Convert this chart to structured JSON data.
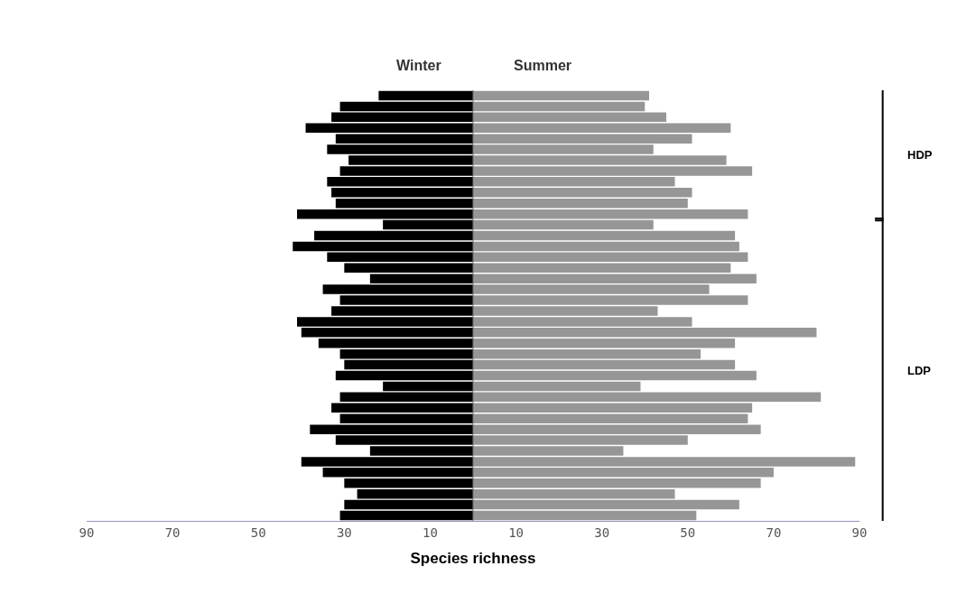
{
  "chart_data": {
    "type": "bar",
    "orientation": "horizontal",
    "stacked": true,
    "xlabel": "Species richness",
    "categories": [
      null,
      null,
      null,
      null,
      null,
      null,
      null,
      null,
      null,
      null,
      null,
      null,
      null,
      null,
      null,
      null,
      null,
      null,
      null,
      null,
      null,
      null,
      null,
      null,
      null,
      null,
      null,
      null,
      null,
      null,
      null,
      null,
      null,
      null,
      null,
      null,
      null,
      null,
      null,
      null
    ],
    "series": [
      {
        "name": "Winter",
        "color": "#000000",
        "values": [
          -22,
          -31,
          -33,
          -39,
          -32,
          -34,
          -29,
          -31,
          -34,
          -33,
          -32,
          -41,
          -21,
          -37,
          -42,
          -34,
          -30,
          -24,
          -35,
          -31,
          -33,
          -41,
          -40,
          -36,
          -31,
          -30,
          -32,
          -21,
          -31,
          -33,
          -31,
          -38,
          -32,
          -24,
          -40,
          -35,
          -30,
          -27,
          -30,
          -31
        ]
      },
      {
        "name": "Summer",
        "color": "#969696",
        "values": [
          41,
          40,
          45,
          60,
          51,
          42,
          59,
          65,
          47,
          51,
          50,
          64,
          42,
          61,
          62,
          64,
          60,
          66,
          55,
          64,
          43,
          51,
          80,
          61,
          53,
          61,
          66,
          39,
          81,
          65,
          64,
          67,
          50,
          35,
          89,
          70,
          67,
          47,
          62,
          52
        ]
      }
    ],
    "xlim": [
      -90,
      90
    ],
    "xticks": [
      {
        "value": -90,
        "label": "90"
      },
      {
        "value": -70,
        "label": "70"
      },
      {
        "value": -50,
        "label": "50"
      },
      {
        "value": -30,
        "label": "30"
      },
      {
        "value": -10,
        "label": "10"
      },
      10,
      30,
      50,
      70,
      90
    ],
    "tick_labels": "x",
    "legend": false,
    "annotations": [
      "HDP",
      "LDP"
    ]
  }
}
